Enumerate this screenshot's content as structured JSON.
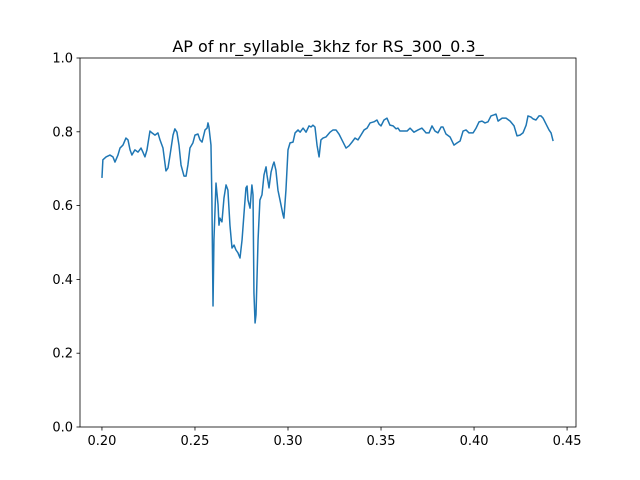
{
  "chart_data": {
    "type": "line",
    "title": "AP of nr_syllable_3khz for RS_300_0.3_",
    "x": [
      0.2,
      0.2005,
      0.2022,
      0.2043,
      0.2059,
      0.207,
      0.2086,
      0.2097,
      0.2113,
      0.2129,
      0.214,
      0.2151,
      0.2161,
      0.2177,
      0.2194,
      0.221,
      0.222,
      0.2231,
      0.2242,
      0.2258,
      0.2269,
      0.2285,
      0.2301,
      0.2312,
      0.2328,
      0.2344,
      0.2355,
      0.2366,
      0.2382,
      0.2392,
      0.2403,
      0.2414,
      0.2425,
      0.2441,
      0.2452,
      0.2462,
      0.2473,
      0.2489,
      0.25,
      0.2516,
      0.2527,
      0.2538,
      0.2554,
      0.2565,
      0.257,
      0.2575,
      0.2586,
      0.2591,
      0.2597,
      0.2602,
      0.2613,
      0.2624,
      0.2629,
      0.2634,
      0.2645,
      0.2656,
      0.2667,
      0.2677,
      0.2688,
      0.2699,
      0.271,
      0.272,
      0.2731,
      0.2742,
      0.2753,
      0.2763,
      0.2774,
      0.278,
      0.2785,
      0.2796,
      0.2806,
      0.2812,
      0.2817,
      0.2823,
      0.2828,
      0.2839,
      0.2849,
      0.286,
      0.2871,
      0.2882,
      0.2887,
      0.2898,
      0.2909,
      0.2919,
      0.2925,
      0.2935,
      0.2946,
      0.2957,
      0.2973,
      0.2978,
      0.2989,
      0.3,
      0.3011,
      0.3027,
      0.3038,
      0.3054,
      0.3065,
      0.3081,
      0.3097,
      0.3113,
      0.3124,
      0.3134,
      0.3145,
      0.3156,
      0.3167,
      0.3177,
      0.3188,
      0.3204,
      0.3226,
      0.3242,
      0.3258,
      0.3274,
      0.329,
      0.3312,
      0.3328,
      0.3344,
      0.336,
      0.3376,
      0.3392,
      0.3409,
      0.3425,
      0.3441,
      0.3462,
      0.3478,
      0.3489,
      0.35,
      0.3516,
      0.3532,
      0.3548,
      0.3565,
      0.3581,
      0.3591,
      0.3602,
      0.3624,
      0.364,
      0.3656,
      0.3677,
      0.3699,
      0.372,
      0.3742,
      0.3758,
      0.3774,
      0.379,
      0.3806,
      0.3823,
      0.3833,
      0.3849,
      0.3871,
      0.3892,
      0.3909,
      0.3925,
      0.3941,
      0.3957,
      0.3973,
      0.3995,
      0.4011,
      0.4027,
      0.4043,
      0.4059,
      0.4075,
      0.4091,
      0.4108,
      0.4118,
      0.4129,
      0.4151,
      0.4172,
      0.4194,
      0.4215,
      0.4231,
      0.4247,
      0.4263,
      0.428,
      0.429,
      0.4306,
      0.4317,
      0.4333,
      0.4349,
      0.436,
      0.4371,
      0.4387,
      0.4403,
      0.4414,
      0.4425
    ],
    "series": [
      {
        "color": "#1f77b4",
        "values": [
          0.675,
          0.724,
          0.732,
          0.737,
          0.732,
          0.718,
          0.737,
          0.756,
          0.764,
          0.783,
          0.778,
          0.751,
          0.737,
          0.751,
          0.745,
          0.756,
          0.745,
          0.732,
          0.751,
          0.802,
          0.797,
          0.791,
          0.797,
          0.778,
          0.756,
          0.694,
          0.702,
          0.737,
          0.791,
          0.808,
          0.799,
          0.764,
          0.71,
          0.68,
          0.68,
          0.71,
          0.756,
          0.77,
          0.791,
          0.794,
          0.778,
          0.772,
          0.805,
          0.81,
          0.824,
          0.813,
          0.764,
          0.615,
          0.328,
          0.507,
          0.661,
          0.602,
          0.547,
          0.566,
          0.556,
          0.621,
          0.656,
          0.642,
          0.547,
          0.485,
          0.493,
          0.48,
          0.472,
          0.458,
          0.507,
          0.575,
          0.648,
          0.653,
          0.615,
          0.593,
          0.656,
          0.629,
          0.363,
          0.282,
          0.304,
          0.507,
          0.615,
          0.629,
          0.683,
          0.705,
          0.683,
          0.648,
          0.691,
          0.71,
          0.718,
          0.696,
          0.642,
          0.615,
          0.575,
          0.566,
          0.642,
          0.751,
          0.77,
          0.772,
          0.797,
          0.805,
          0.799,
          0.81,
          0.799,
          0.816,
          0.813,
          0.818,
          0.813,
          0.764,
          0.732,
          0.778,
          0.783,
          0.786,
          0.799,
          0.805,
          0.805,
          0.794,
          0.778,
          0.756,
          0.762,
          0.772,
          0.783,
          0.778,
          0.791,
          0.805,
          0.81,
          0.824,
          0.827,
          0.832,
          0.821,
          0.816,
          0.832,
          0.837,
          0.818,
          0.816,
          0.808,
          0.81,
          0.802,
          0.802,
          0.802,
          0.81,
          0.799,
          0.805,
          0.81,
          0.797,
          0.797,
          0.816,
          0.802,
          0.797,
          0.813,
          0.813,
          0.794,
          0.786,
          0.764,
          0.77,
          0.775,
          0.802,
          0.805,
          0.797,
          0.797,
          0.81,
          0.827,
          0.829,
          0.824,
          0.827,
          0.843,
          0.846,
          0.848,
          0.829,
          0.837,
          0.837,
          0.829,
          0.816,
          0.789,
          0.791,
          0.797,
          0.818,
          0.843,
          0.84,
          0.835,
          0.832,
          0.843,
          0.843,
          0.837,
          0.821,
          0.805,
          0.797,
          0.775
        ]
      }
    ],
    "xlim": [
      0.1882,
      0.4548
    ],
    "ylim": [
      0,
      1
    ],
    "xticks": [
      {
        "value": 0.2,
        "label": "0.20"
      },
      0.25,
      {
        "value": 0.3,
        "label": "0.30"
      },
      0.35,
      {
        "value": 0.4,
        "label": "0.40"
      },
      0.45
    ],
    "yticks": [
      {
        "value": 0,
        "label": "0.0"
      },
      {
        "value": 0.2,
        "label": "0.2"
      },
      {
        "value": 0.4,
        "label": "0.4"
      },
      {
        "value": 0.6,
        "label": "0.6"
      },
      {
        "value": 0.8,
        "label": "0.8"
      },
      {
        "value": 1,
        "label": "1.0"
      }
    ]
  }
}
